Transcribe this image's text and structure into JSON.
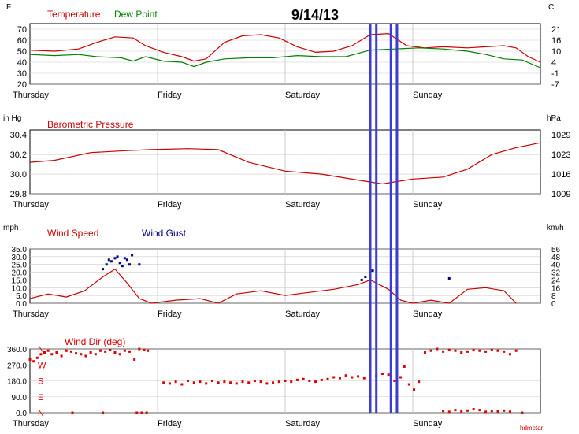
{
  "title": "9/14/13",
  "credit": "hdmetar",
  "colors": {
    "temperature": "#cc0000",
    "dew_point": "#008000",
    "pressure": "#cc0000",
    "wind_speed": "#cc0000",
    "wind_gust": "#000080",
    "wind_dir": "#dd0000",
    "markers": "#3c3cd0",
    "grid": "#cccccc"
  },
  "chart_data": [
    {
      "type": "line",
      "left_unit": "F",
      "right_unit": "C",
      "legend": [
        "Temperature",
        "Dew Point"
      ],
      "x_ticks": [
        "Thursday",
        "Friday",
        "Saturday",
        "Sunday"
      ],
      "x_range": [
        0,
        4.2
      ],
      "ylim": [
        20,
        75
      ],
      "y_ticks": [
        70,
        60,
        50,
        40,
        30,
        20
      ],
      "y2_ticks": [
        "21",
        "16",
        "10",
        "4",
        "-1",
        "-7"
      ],
      "series": [
        {
          "name": "Temperature",
          "x": [
            0,
            0.2,
            0.4,
            0.55,
            0.7,
            0.85,
            0.95,
            1.1,
            1.25,
            1.35,
            1.45,
            1.6,
            1.75,
            1.9,
            2.05,
            2.2,
            2.35,
            2.5,
            2.65,
            2.8,
            2.95,
            3.1,
            3.25,
            3.4,
            3.6,
            3.75,
            3.9,
            4.0,
            4.1,
            4.2
          ],
          "y": [
            51,
            50,
            52,
            58,
            63,
            62,
            55,
            49,
            45,
            41,
            43,
            58,
            64,
            65,
            62,
            54,
            49,
            50,
            55,
            65,
            66,
            55,
            53,
            54,
            53,
            54,
            55,
            53,
            45,
            40
          ]
        },
        {
          "name": "Dew Point",
          "x": [
            0,
            0.2,
            0.4,
            0.55,
            0.75,
            0.85,
            0.95,
            1.1,
            1.25,
            1.35,
            1.45,
            1.6,
            1.8,
            2.0,
            2.2,
            2.4,
            2.6,
            2.8,
            3.0,
            3.2,
            3.4,
            3.6,
            3.75,
            3.9,
            4.05,
            4.2
          ],
          "y": [
            47,
            46,
            47,
            45,
            44,
            41,
            45,
            41,
            40,
            36,
            40,
            43,
            44,
            44,
            46,
            45,
            45,
            51,
            52,
            53,
            52,
            50,
            47,
            43,
            42,
            35
          ]
        }
      ]
    },
    {
      "type": "line",
      "left_unit": "in Hg",
      "right_unit": "hPa",
      "legend": [
        "Barometric Pressure"
      ],
      "x_ticks": [
        "Thursday",
        "Friday",
        "Saturday",
        "Sunday"
      ],
      "x_range": [
        0,
        4.2
      ],
      "ylim": [
        29.8,
        30.45
      ],
      "y_ticks": [
        "30.4",
        "30.2",
        "30.0",
        "29.8"
      ],
      "y2_ticks": [
        "1029",
        "1023",
        "1016",
        "1009"
      ],
      "series": [
        {
          "name": "Barometric Pressure",
          "x": [
            0,
            0.2,
            0.5,
            0.8,
            1.0,
            1.3,
            1.55,
            1.8,
            2.1,
            2.4,
            2.7,
            2.9,
            3.0,
            3.15,
            3.4,
            3.6,
            3.8,
            4.0,
            4.2
          ],
          "y": [
            30.12,
            30.14,
            30.22,
            30.24,
            30.25,
            30.26,
            30.25,
            30.12,
            30.03,
            30.0,
            29.94,
            29.9,
            29.92,
            29.95,
            29.97,
            30.05,
            30.2,
            30.27,
            30.32
          ]
        }
      ]
    },
    {
      "type": "line",
      "left_unit": "mph",
      "right_unit": "km/h",
      "legend": [
        "Wind Speed",
        "Wind Gust"
      ],
      "x_ticks": [
        "Thursday",
        "Friday",
        "Saturday",
        "Sunday"
      ],
      "x_range": [
        0,
        4.2
      ],
      "ylim": [
        0,
        35
      ],
      "y_ticks": [
        "35.0",
        "30.0",
        "25.0",
        "20.0",
        "15.0",
        "10.0",
        "5.0",
        "0.0"
      ],
      "y2_ticks": [
        "56",
        "48",
        "40",
        "32",
        "24",
        "16",
        "8",
        "0"
      ],
      "series": [
        {
          "name": "Wind Speed",
          "x": [
            0,
            0.15,
            0.3,
            0.45,
            0.6,
            0.7,
            0.8,
            0.9,
            1.0,
            1.2,
            1.4,
            1.55,
            1.7,
            1.9,
            2.1,
            2.3,
            2.5,
            2.7,
            2.8,
            2.95,
            3.05,
            3.15,
            3.3,
            3.45,
            3.6,
            3.75,
            3.9,
            4.0
          ],
          "y": [
            3,
            6,
            4,
            8,
            17,
            22,
            13,
            3,
            0,
            2,
            3,
            0,
            6,
            8,
            5,
            7,
            9,
            12,
            15,
            9,
            2,
            0,
            2,
            0,
            9,
            10,
            8,
            0
          ]
        },
        {
          "name": "Wind Gust",
          "x": [
            0.6,
            0.63,
            0.65,
            0.67,
            0.7,
            0.72,
            0.74,
            0.76,
            0.78,
            0.8,
            0.82,
            0.84,
            0.9,
            2.73,
            2.76,
            2.82,
            3.45
          ],
          "y": [
            22,
            25,
            28,
            27,
            29,
            30,
            26,
            24,
            29,
            28,
            25,
            31,
            25,
            15,
            17,
            21,
            16
          ]
        }
      ]
    },
    {
      "type": "scatter",
      "left_unit": "",
      "right_unit": "",
      "legend": [
        "Wind Dir (deg)"
      ],
      "x_ticks": [
        "Thursday",
        "Friday",
        "Saturday",
        "Sunday"
      ],
      "x_range": [
        0,
        4.2
      ],
      "ylim": [
        0,
        360
      ],
      "y_ticks": [
        "360.0",
        "270.0",
        "180.0",
        "90.0",
        "0.0"
      ],
      "compass": [
        "N",
        "W",
        "S",
        "E",
        "N"
      ],
      "series": [
        {
          "name": "Wind Dir (deg)",
          "x": [
            0.0,
            0.03,
            0.06,
            0.09,
            0.12,
            0.15,
            0.18,
            0.22,
            0.26,
            0.3,
            0.34,
            0.38,
            0.42,
            0.46,
            0.5,
            0.54,
            0.58,
            0.62,
            0.66,
            0.7,
            0.74,
            0.78,
            0.82,
            0.86,
            0.9,
            0.94,
            0.97,
            0.35,
            0.6,
            0.88,
            0.92,
            0.96,
            1.1,
            1.15,
            1.2,
            1.25,
            1.3,
            1.35,
            1.4,
            1.45,
            1.5,
            1.55,
            1.6,
            1.65,
            1.7,
            1.75,
            1.8,
            1.85,
            1.9,
            1.95,
            2.0,
            2.05,
            2.1,
            2.15,
            2.2,
            2.25,
            2.3,
            2.35,
            2.4,
            2.45,
            2.5,
            2.55,
            2.6,
            2.65,
            2.7,
            2.75,
            2.8,
            2.85,
            2.9,
            2.95,
            3.0,
            3.05,
            3.08,
            3.12,
            3.16,
            3.2,
            3.25,
            3.3,
            3.35,
            3.4,
            3.45,
            3.5,
            3.55,
            3.6,
            3.65,
            3.7,
            3.75,
            3.8,
            3.85,
            3.9,
            3.95,
            4.0,
            3.4,
            3.45,
            3.5,
            3.55,
            3.6,
            3.65,
            3.7,
            3.75,
            3.8,
            3.85,
            3.9,
            3.95,
            4.05
          ],
          "y": [
            300,
            290,
            310,
            330,
            340,
            350,
            330,
            340,
            320,
            350,
            345,
            335,
            330,
            320,
            340,
            330,
            350,
            345,
            355,
            340,
            330,
            350,
            345,
            300,
            360,
            355,
            350,
            0,
            0,
            0,
            0,
            0,
            170,
            165,
            175,
            160,
            180,
            170,
            175,
            165,
            180,
            170,
            175,
            170,
            165,
            175,
            170,
            180,
            175,
            165,
            170,
            175,
            180,
            175,
            185,
            190,
            180,
            175,
            185,
            190,
            200,
            195,
            210,
            200,
            205,
            195,
            200,
            210,
            220,
            215,
            180,
            200,
            260,
            160,
            130,
            175,
            340,
            350,
            360,
            345,
            355,
            350,
            340,
            345,
            355,
            350,
            345,
            355,
            350,
            345,
            330,
            350,
            10,
            5,
            15,
            8,
            12,
            20,
            15,
            5,
            10,
            8,
            12,
            6,
            0
          ]
        }
      ]
    }
  ],
  "markers": [
    2.8,
    2.85,
    2.97,
    3.02
  ]
}
